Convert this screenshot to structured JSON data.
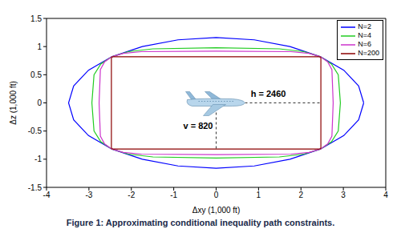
{
  "chart_data": {
    "type": "line",
    "caption": "Figure 1: Approximating conditional inequality path constraints.",
    "x_label": "Δxy (1,000 ft)",
    "y_label": "Δz (1,000 ft)",
    "xlim": [
      -4,
      4
    ],
    "xticks": [
      -4,
      -3,
      -2,
      -1,
      0,
      1,
      2,
      3,
      4
    ],
    "ylim": [
      -1.5,
      1.5
    ],
    "yticks": [
      -1.5,
      -1,
      -0.5,
      0,
      0.5,
      1,
      1.5
    ],
    "legend": "upper right",
    "series": [
      {
        "name": "N=2",
        "color": "#0000ff",
        "x": [
          3.48,
          3.36,
          3.01,
          2.46,
          1.74,
          0.9,
          0,
          -0.9,
          -1.74,
          -2.46,
          -3.01,
          -3.36,
          -3.48,
          -3.36,
          -3.01,
          -2.46,
          -1.74,
          -0.9,
          0,
          0.9,
          1.74,
          2.46,
          3.01,
          3.36,
          3.48
        ],
        "values": [
          0,
          0.3,
          0.58,
          0.82,
          1,
          1.12,
          1.16,
          1.12,
          1,
          0.82,
          0.58,
          0.3,
          0,
          -0.3,
          -0.58,
          -0.82,
          -1,
          -1.12,
          -1.16,
          -1.12,
          -1,
          -0.82,
          -0.58,
          -0.3,
          0
        ]
      },
      {
        "name": "N=4",
        "color": "#22cc22",
        "x": [
          2.93,
          2.88,
          2.72,
          2.46,
          2.07,
          1.49,
          0,
          -1.49,
          -2.07,
          -2.46,
          -2.72,
          -2.88,
          -2.93,
          -2.88,
          -2.72,
          -2.46,
          -2.07,
          -1.49,
          0,
          1.49,
          2.07,
          2.46,
          2.72,
          2.88,
          2.93
        ],
        "values": [
          0,
          0.5,
          0.69,
          0.82,
          0.91,
          0.96,
          0.98,
          0.96,
          0.91,
          0.82,
          0.69,
          0.5,
          0,
          -0.5,
          -0.69,
          -0.82,
          -0.91,
          -0.96,
          -0.98,
          -0.96,
          -0.91,
          -0.82,
          -0.69,
          -0.5,
          0
        ]
      },
      {
        "name": "N=6",
        "color": "#cc33cc",
        "x": [
          2.76,
          2.73,
          2.63,
          2.46,
          2.19,
          1.76,
          0,
          -1.76,
          -2.19,
          -2.46,
          -2.63,
          -2.73,
          -2.76,
          -2.73,
          -2.63,
          -2.46,
          -2.19,
          -1.76,
          0,
          1.76,
          2.19,
          2.46,
          2.63,
          2.73,
          2.76
        ],
        "values": [
          0,
          0.59,
          0.73,
          0.82,
          0.88,
          0.91,
          0.92,
          0.91,
          0.88,
          0.82,
          0.73,
          0.59,
          0,
          -0.59,
          -0.73,
          -0.82,
          -0.88,
          -0.91,
          -0.92,
          -0.91,
          -0.88,
          -0.82,
          -0.73,
          -0.59,
          0
        ]
      },
      {
        "name": "N=200",
        "color": "#8b0000",
        "x": [
          2.47,
          2.47,
          2.46,
          2.42,
          0,
          -2.42,
          -2.46,
          -2.47,
          -2.47,
          -2.47,
          -2.46,
          -2.42,
          0,
          2.42,
          2.46,
          2.47,
          2.47
        ],
        "values": [
          0,
          0.79,
          0.815,
          0.82,
          0.82,
          0.82,
          0.815,
          0.79,
          0,
          -0.79,
          -0.815,
          -0.82,
          -0.82,
          -0.82,
          -0.815,
          -0.79,
          0
        ]
      }
    ],
    "annotations": [
      {
        "text": "h = 2460",
        "x": [
          0,
          2.46
        ],
        "y": [
          0,
          0
        ]
      },
      {
        "text": "v = 820",
        "x": [
          0,
          0
        ],
        "y": [
          0,
          -0.82
        ]
      }
    ]
  }
}
